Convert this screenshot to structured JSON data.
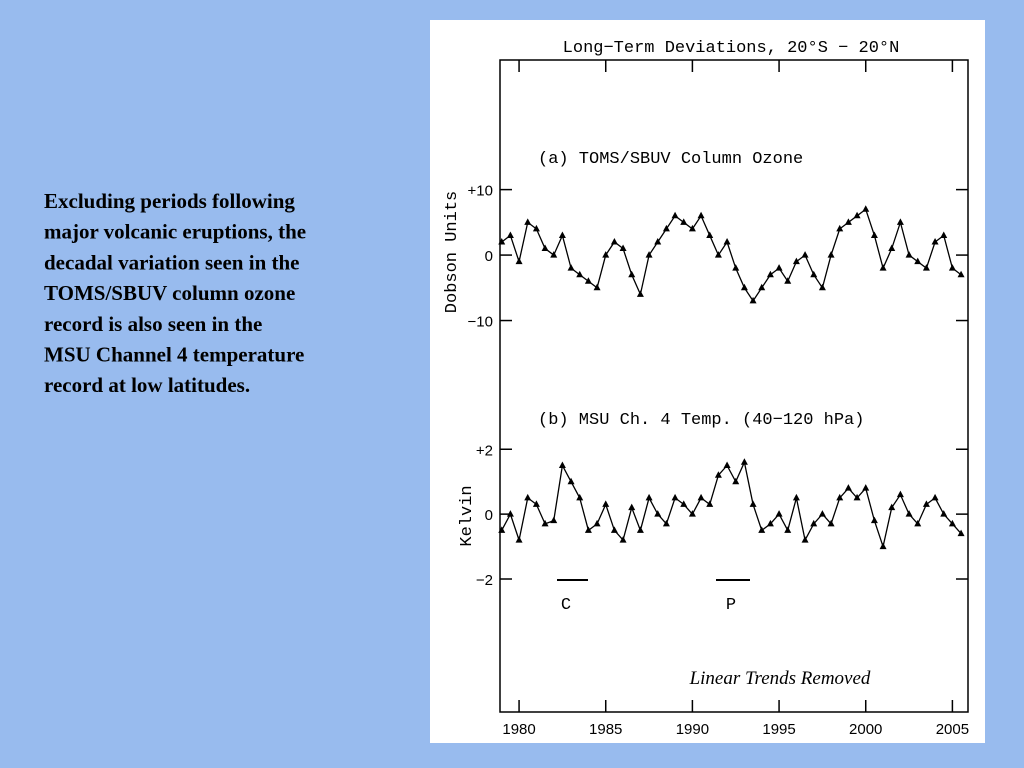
{
  "slide_text": [
    "Excluding periods following",
    "major volcanic eruptions, the",
    "decadal variation seen in the",
    "TOMS/SBUV column ozone",
    "record is also seen in the",
    "MSU Channel 4 temperature",
    "record at low latitudes."
  ],
  "figure": {
    "title": "Long−Term Deviations, 20°S − 20°N",
    "annotation": "Linear Trends Removed",
    "markers": [
      "C",
      "P"
    ]
  },
  "chart_data": [
    {
      "type": "line",
      "subtitle": "(a) TOMS/SBUV Column Ozone",
      "y_label": "Dobson Units",
      "color": "#000000",
      "x": [
        1979,
        1979.5,
        1980,
        1980.5,
        1981,
        1981.5,
        1982,
        1982.5,
        1983,
        1983.5,
        1984,
        1984.5,
        1985,
        1985.5,
        1986,
        1986.5,
        1987,
        1987.5,
        1988,
        1988.5,
        1989,
        1989.5,
        1990,
        1990.5,
        1991,
        1991.5,
        1992,
        1992.5,
        1993,
        1993.5,
        1994,
        1994.5,
        1995,
        1995.5,
        1996,
        1996.5,
        1997,
        1997.5,
        1998,
        1998.5,
        1999,
        1999.5,
        2000,
        2000.5,
        2001,
        2001.5,
        2002,
        2002.5,
        2003,
        2003.5,
        2004,
        2004.5,
        2005,
        2005.5
      ],
      "values": [
        2,
        3,
        -1,
        5,
        4,
        1,
        0,
        3,
        -2,
        -3,
        -4,
        -5,
        0,
        2,
        1,
        -3,
        -6,
        0,
        2,
        4,
        6,
        5,
        4,
        6,
        3,
        0,
        2,
        -2,
        -5,
        -7,
        -5,
        -3,
        -2,
        -4,
        -1,
        0,
        -3,
        -5,
        0,
        4,
        5,
        6,
        7,
        3,
        -2,
        1,
        5,
        0,
        -1,
        -2,
        2,
        3,
        -2,
        -3
      ],
      "xlim": [
        1978.9,
        2005.9
      ],
      "xticks": [
        1980,
        1985,
        1990,
        1995,
        2000,
        2005
      ],
      "ylim": [
        -69.8,
        29.8
      ],
      "yticks": [
        {
          "value": 10,
          "label": "+10"
        },
        0,
        {
          "value": -10,
          "label": "−10"
        }
      ]
    },
    {
      "type": "line",
      "subtitle": "(b) MSU Ch. 4 Temp. (40−120 hPa)",
      "y_label": "Kelvin",
      "color": "#000000",
      "x": [
        1979,
        1979.5,
        1980,
        1980.5,
        1981,
        1981.5,
        1982,
        1982.5,
        1983,
        1983.5,
        1984,
        1984.5,
        1985,
        1985.5,
        1986,
        1986.5,
        1987,
        1987.5,
        1988,
        1988.5,
        1989,
        1989.5,
        1990,
        1990.5,
        1991,
        1991.5,
        1992,
        1992.5,
        1993,
        1993.5,
        1994,
        1994.5,
        1995,
        1995.5,
        1996,
        1996.5,
        1997,
        1997.5,
        1998,
        1998.5,
        1999,
        1999.5,
        2000,
        2000.5,
        2001,
        2001.5,
        2002,
        2002.5,
        2003,
        2003.5,
        2004,
        2004.5,
        2005,
        2005.5
      ],
      "values": [
        -0.5,
        0,
        -0.8,
        0.5,
        0.3,
        -0.3,
        -0.2,
        1.5,
        1,
        0.5,
        -0.5,
        -0.3,
        0.3,
        -0.5,
        -0.8,
        0.2,
        -0.5,
        0.5,
        0,
        -0.3,
        0.5,
        0.3,
        0,
        0.5,
        0.3,
        1.2,
        1.5,
        1.0,
        1.6,
        0.3,
        -0.5,
        -0.3,
        0,
        -0.5,
        0.5,
        -0.8,
        -0.3,
        0,
        -0.3,
        0.5,
        0.8,
        0.5,
        0.8,
        -0.2,
        -1.0,
        0.2,
        0.6,
        0,
        -0.3,
        0.3,
        0.5,
        0,
        -0.3,
        -0.6
      ],
      "xlim": [
        1978.9,
        2005.9
      ],
      "ylim": [
        -6.1,
        14
      ],
      "yticks": [
        {
          "value": 2,
          "label": "+2"
        },
        0,
        {
          "value": -2,
          "label": "−2"
        }
      ]
    }
  ]
}
